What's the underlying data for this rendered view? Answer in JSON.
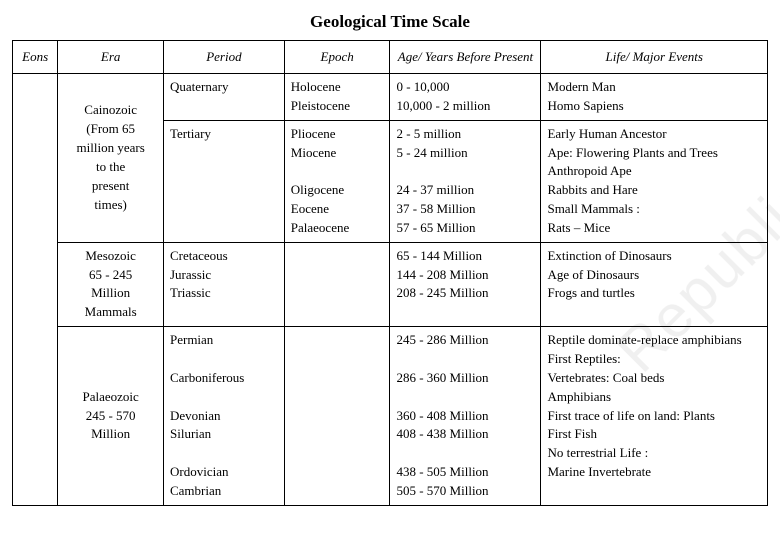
{
  "title": "Geological Time Scale",
  "headers": {
    "eons": "Eons",
    "era": "Era",
    "period": "Period",
    "epoch": "Epoch",
    "age": "Age/ Years Before Present",
    "life": "Life/ Major Events"
  },
  "watermark": "Republic",
  "eras": {
    "cainozoic": {
      "label_lines": [
        "Cainozoic",
        "(From 65",
        "million years",
        "to the",
        "present",
        "times)"
      ],
      "rows": [
        {
          "period": [
            "Quaternary"
          ],
          "epoch": [
            "Holocene",
            "Pleistocene"
          ],
          "age": [
            "0 - 10,000",
            "10,000 - 2 million"
          ],
          "life": [
            "Modern Man",
            "Homo Sapiens"
          ]
        },
        {
          "period": [
            "Tertiary"
          ],
          "epoch": [
            "Pliocene",
            "Miocene",
            "",
            "Oligocene",
            "Eocene",
            "Palaeocene"
          ],
          "age": [
            "2 - 5 million",
            "5 - 24 million",
            "",
            "24 - 37 million",
            "37 - 58 Million",
            "57 - 65 Million"
          ],
          "life": [
            "Early Human Ancestor",
            "Ape: Flowering Plants and Trees",
            "Anthropoid Ape",
            "Rabbits and Hare",
            "Small Mammals :",
            "Rats – Mice"
          ]
        }
      ]
    },
    "mesozoic": {
      "label_lines": [
        "Mesozoic",
        "65 - 245",
        "Million",
        "Mammals"
      ],
      "rows": [
        {
          "period": [
            "Cretaceous",
            "Jurassic",
            "Triassic"
          ],
          "epoch": [],
          "age": [
            "65 - 144 Million",
            "144 - 208 Million",
            "208 - 245 Million"
          ],
          "life": [
            "Extinction of Dinosaurs",
            "Age of Dinosaurs",
            "Frogs and turtles"
          ]
        }
      ]
    },
    "palaeozoic": {
      "label_lines": [
        "Palaeozoic",
        "245 - 570",
        "Million"
      ],
      "rows": [
        {
          "period": [
            "Permian",
            "",
            "Carboniferous",
            "",
            "Devonian",
            "Silurian",
            "",
            "Ordovician",
            "Cambrian"
          ],
          "epoch": [],
          "age": [
            "245 - 286 Million",
            "",
            "286 - 360 Million",
            "",
            "360 - 408 Million",
            "408 - 438 Million",
            "",
            "438 - 505 Million",
            "505 - 570 Million"
          ],
          "life": [
            "Reptile dominate-replace amphibians",
            "First Reptiles:",
            "Vertebrates: Coal beds",
            "Amphibians",
            "First trace of life on land: Plants",
            "First Fish",
            "No terrestrial Life :",
            "Marine Invertebrate"
          ]
        }
      ]
    }
  },
  "colors": {
    "background": "#ffffff",
    "text": "#000000",
    "border": "#000000"
  },
  "typography": {
    "title_fontsize": 17,
    "body_fontsize": 13,
    "font_family": "Bookman Old Style"
  }
}
